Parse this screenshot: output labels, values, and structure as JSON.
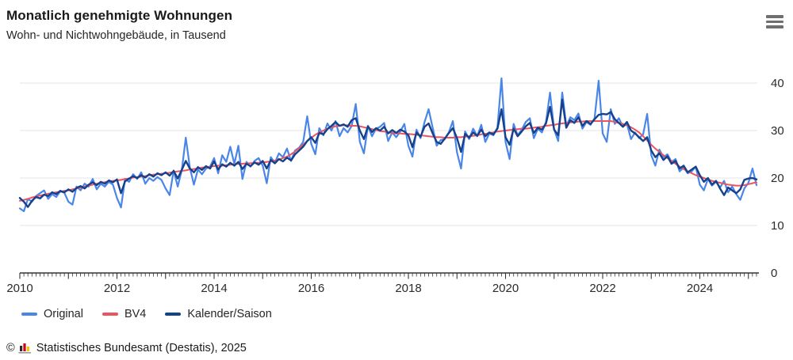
{
  "header": {
    "title": "Monatlich genehmigte Wohnungen",
    "subtitle": "Wohn- und Nichtwohngebäude, in Tausend",
    "menu_icon": "hamburger-menu-icon"
  },
  "chart_data": {
    "type": "line",
    "title": "Monatlich genehmigte Wohnungen",
    "subtitle": "Wohn- und Nichtwohngebäude, in Tausend",
    "unit": "Tausend",
    "frequency": "monthly",
    "x_start": "2010-01",
    "x_end": "2025-03",
    "x_tick_years": [
      2010,
      2012,
      2014,
      2016,
      2018,
      2020,
      2022,
      2024
    ],
    "yticks": [
      0,
      10,
      20,
      30,
      40
    ],
    "ylim": [
      0,
      43
    ],
    "grid": "horizontal",
    "legend_position": "bottom-left",
    "series": [
      {
        "name": "Original",
        "color": "#4a86e8",
        "values": [
          13.6,
          13.0,
          15.6,
          15.0,
          16.2,
          16.8,
          17.4,
          15.6,
          16.6,
          16.0,
          17.2,
          16.9,
          15.0,
          14.4,
          18.2,
          17.4,
          18.8,
          18.2,
          19.8,
          17.6,
          18.8,
          18.2,
          19.2,
          18.6,
          15.8,
          13.8,
          19.8,
          19.2,
          20.8,
          19.8,
          21.2,
          18.8,
          20.0,
          19.4,
          20.2,
          19.6,
          17.8,
          16.4,
          21.6,
          18.2,
          21.6,
          28.5,
          22.2,
          18.6,
          21.8,
          20.8,
          22.0,
          22.4,
          24.2,
          21.0,
          24.8,
          23.4,
          26.6,
          23.0,
          26.8,
          19.8,
          23.4,
          22.4,
          23.6,
          24.2,
          22.6,
          18.9,
          24.4,
          23.2,
          25.2,
          24.4,
          26.2,
          23.6,
          25.8,
          26.4,
          27.6,
          33.0,
          27.2,
          25.0,
          30.5,
          29.0,
          31.5,
          30.0,
          32.0,
          28.8,
          30.5,
          29.6,
          31.0,
          35.6,
          27.6,
          25.2,
          31.0,
          28.8,
          30.4,
          30.8,
          31.6,
          27.8,
          29.6,
          28.6,
          29.8,
          31.4,
          26.8,
          24.5,
          30.2,
          28.4,
          31.8,
          34.5,
          30.6,
          26.8,
          28.0,
          28.2,
          29.6,
          32.0,
          25.4,
          22.0,
          29.8,
          28.2,
          30.4,
          28.8,
          31.2,
          27.6,
          29.4,
          29.0,
          30.6,
          41.0,
          27.6,
          24.0,
          31.4,
          29.0,
          30.2,
          31.8,
          32.6,
          28.4,
          30.4,
          29.6,
          31.8,
          38.0,
          30.2,
          27.8,
          38.0,
          31.0,
          32.8,
          32.2,
          33.6,
          30.4,
          31.8,
          31.2,
          32.6,
          40.5,
          29.4,
          27.6,
          34.5,
          31.4,
          32.6,
          30.8,
          31.4,
          28.2,
          29.6,
          28.4,
          29.2,
          33.5,
          24.8,
          22.6,
          26.0,
          24.4,
          25.0,
          23.4,
          24.0,
          21.4,
          22.2,
          21.0,
          21.4,
          22.4,
          18.6,
          17.4,
          19.8,
          18.4,
          19.2,
          18.0,
          19.4,
          17.0,
          18.2,
          16.6,
          15.4,
          17.8,
          19.0,
          22.0,
          18.5
        ]
      },
      {
        "name": "BV4",
        "color": "#ea5560",
        "values": [
          15.2,
          15.4,
          15.6,
          15.9,
          16.1,
          16.3,
          16.5,
          16.7,
          16.8,
          17.0,
          17.1,
          17.3,
          17.4,
          17.6,
          17.8,
          18.0,
          18.2,
          18.4,
          18.6,
          18.8,
          19.0,
          19.1,
          19.3,
          19.4,
          19.5,
          19.6,
          19.8,
          19.9,
          20.1,
          20.2,
          20.3,
          20.4,
          20.6,
          20.7,
          20.8,
          20.9,
          21.0,
          21.1,
          21.3,
          21.4,
          21.5,
          21.6,
          21.8,
          21.9,
          22.0,
          22.2,
          22.3,
          22.4,
          22.5,
          22.6,
          22.6,
          22.7,
          22.8,
          22.9,
          23.0,
          23.0,
          23.1,
          23.1,
          23.2,
          23.2,
          23.3,
          23.4,
          23.5,
          23.7,
          23.9,
          24.2,
          24.5,
          25.0,
          25.6,
          26.3,
          27.0,
          27.8,
          28.5,
          29.1,
          29.6,
          30.0,
          30.4,
          30.7,
          30.9,
          31.0,
          31.1,
          31.1,
          31.0,
          31.0,
          30.9,
          30.7,
          30.5,
          30.3,
          30.1,
          29.9,
          29.8,
          29.6,
          29.5,
          29.4,
          29.4,
          29.3,
          29.3,
          29.2,
          29.1,
          29.0,
          28.9,
          28.8,
          28.7,
          28.6,
          28.6,
          28.5,
          28.5,
          28.5,
          28.6,
          28.6,
          28.7,
          28.8,
          28.9,
          29.0,
          29.2,
          29.3,
          29.5,
          29.6,
          29.8,
          29.9,
          30.0,
          30.1,
          30.2,
          30.3,
          30.4,
          30.4,
          30.5,
          30.6,
          30.7,
          30.8,
          31.0,
          31.1,
          31.2,
          31.4,
          31.5,
          31.6,
          31.7,
          31.8,
          31.9,
          31.9,
          32.0,
          32.0,
          32.0,
          32.0,
          32.0,
          32.0,
          32.0,
          31.8,
          31.6,
          31.4,
          31.1,
          30.7,
          30.2,
          29.6,
          28.8,
          27.9,
          27.0,
          26.2,
          25.5,
          24.8,
          24.2,
          23.6,
          23.0,
          22.4,
          21.9,
          21.4,
          21.0,
          20.6,
          20.3,
          20.0,
          19.7,
          19.4,
          19.2,
          19.0,
          18.8,
          18.6,
          18.5,
          18.4,
          18.4,
          18.5,
          18.7,
          18.9,
          19.1
        ]
      },
      {
        "name": "Kalender/Saison",
        "color": "#16418c",
        "values": [
          15.8,
          15.0,
          13.9,
          15.2,
          16.0,
          15.7,
          16.5,
          16.2,
          17.0,
          16.6,
          17.3,
          17.0,
          17.6,
          17.1,
          17.9,
          18.3,
          17.8,
          18.6,
          19.1,
          18.5,
          19.2,
          18.8,
          19.5,
          19.1,
          19.7,
          16.8,
          19.3,
          19.9,
          20.4,
          20.0,
          20.6,
          20.1,
          20.8,
          20.3,
          21.0,
          20.6,
          21.2,
          20.5,
          21.5,
          19.9,
          21.7,
          23.6,
          22.0,
          21.2,
          22.3,
          21.7,
          22.5,
          22.0,
          23.5,
          21.8,
          22.9,
          22.4,
          23.2,
          22.6,
          23.4,
          21.9,
          23.0,
          22.5,
          23.3,
          22.8,
          23.6,
          22.0,
          23.8,
          23.1,
          24.0,
          23.5,
          24.3,
          23.7,
          25.0,
          25.8,
          26.6,
          27.8,
          28.6,
          27.4,
          29.5,
          29.2,
          30.3,
          31.0,
          31.8,
          31.0,
          31.3,
          30.8,
          32.2,
          32.6,
          30.0,
          28.2,
          30.9,
          29.7,
          30.5,
          30.0,
          30.8,
          29.4,
          30.1,
          29.5,
          30.2,
          29.8,
          29.0,
          26.5,
          29.6,
          28.7,
          30.8,
          31.5,
          29.4,
          27.6,
          27.2,
          28.3,
          29.5,
          30.5,
          28.4,
          25.5,
          29.3,
          28.5,
          29.6,
          28.9,
          30.2,
          28.8,
          29.6,
          29.2,
          30.4,
          34.5,
          28.6,
          27.0,
          30.4,
          28.8,
          29.8,
          30.9,
          31.6,
          29.5,
          30.6,
          30.2,
          31.5,
          35.0,
          30.2,
          29.0,
          36.5,
          30.6,
          32.2,
          31.6,
          32.8,
          31.0,
          32.0,
          31.4,
          32.4,
          33.3,
          33.5,
          33.4,
          33.9,
          32.4,
          31.6,
          30.8,
          31.8,
          30.0,
          29.4,
          28.6,
          27.8,
          28.6,
          25.8,
          24.4,
          25.2,
          23.8,
          24.6,
          23.0,
          23.6,
          22.0,
          22.6,
          21.2,
          21.8,
          22.4,
          20.6,
          19.2,
          20.0,
          18.6,
          19.4,
          17.8,
          16.4,
          18.0,
          17.4,
          16.8,
          17.6,
          19.6,
          19.9,
          20.0,
          19.7
        ]
      }
    ]
  },
  "colors": {
    "grid": "#e4e4e4",
    "axis": "#333333",
    "tick_label": "#2b2b2b",
    "menu_icon": "#6f6f6f"
  },
  "footer": {
    "copyright": "©",
    "logo_icon": "destatis-logo-icon",
    "source": "Statistisches Bundesamt (Destatis), 2025"
  }
}
